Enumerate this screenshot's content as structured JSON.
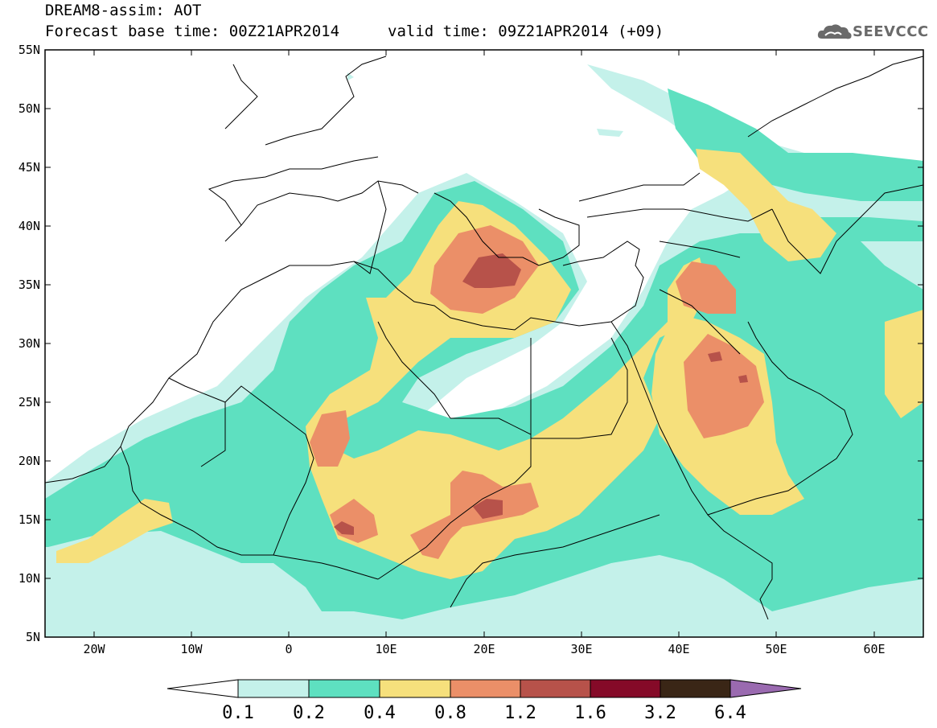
{
  "header": {
    "title_line1": "DREAM8-assim: AOT",
    "title_line2": "Forecast base time: 00Z21APR2014",
    "valid_time": "valid time: 09Z21APR2014 (+09)"
  },
  "logo": {
    "text": "SEEVCCC",
    "icon": "cloud-icon"
  },
  "map": {
    "lat_labels": [
      "55N",
      "50N",
      "45N",
      "40N",
      "35N",
      "30N",
      "25N",
      "20N",
      "15N",
      "10N",
      "5N"
    ],
    "lon_labels": [
      "20W",
      "10W",
      "0",
      "10E",
      "20E",
      "30E",
      "40E",
      "50E",
      "60E"
    ],
    "lon_range": [
      -25,
      65
    ],
    "lat_range": [
      5,
      55
    ]
  },
  "colorbar": {
    "labels": [
      "0.1",
      "0.2",
      "0.4",
      "0.8",
      "1.2",
      "1.6",
      "3.2",
      "6.4"
    ],
    "colors": [
      "#c4f1ea",
      "#5ee0c0",
      "#f6e07c",
      "#eb8f68",
      "#b7524a",
      "#850a28",
      "#3a2616",
      "#9a6ab0"
    ]
  }
}
